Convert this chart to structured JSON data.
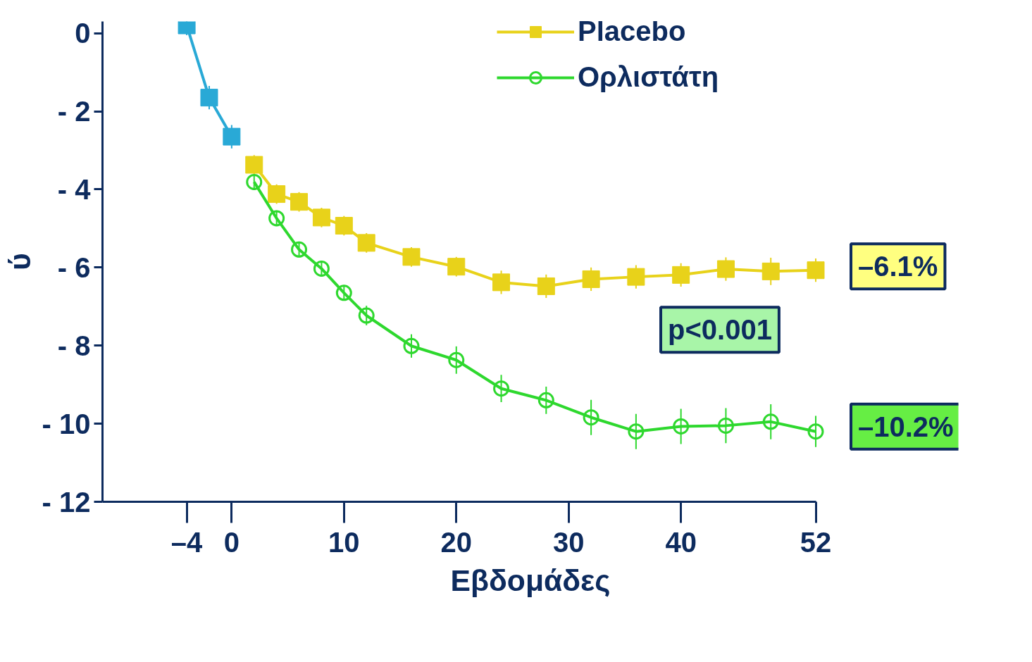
{
  "chart_data": {
    "type": "line",
    "xlabel": "Εβδομάδες",
    "ylabel": "ύ",
    "xlim": [
      -11.5,
      52
    ],
    "ylim": [
      -12,
      0.3
    ],
    "xticks": [
      {
        "value": -4,
        "label": "–4"
      },
      0,
      10,
      20,
      30,
      40,
      52
    ],
    "yticks": [
      0,
      {
        "value": -2,
        "label": "- 2"
      },
      {
        "value": -4,
        "label": "- 4"
      },
      {
        "value": -6,
        "label": "- 6"
      },
      {
        "value": -8,
        "label": "- 8"
      },
      {
        "value": -10,
        "label": "- 10"
      },
      {
        "value": -12,
        "label": "- 12"
      }
    ],
    "grid": false,
    "legend": "top right",
    "series": [
      {
        "color": "#29a9d6",
        "marker": "square",
        "x": [
          -4,
          -2,
          0
        ],
        "values": [
          0.2,
          -1.65,
          -2.65
        ],
        "errors": [
          0.25,
          0.3,
          0.3
        ]
      },
      {
        "name": "Placebo",
        "color": "#e8d21a",
        "marker": "square",
        "x": [
          2,
          4,
          6,
          8,
          10,
          12,
          16,
          20,
          24,
          28,
          32,
          36,
          40,
          44,
          48,
          52
        ],
        "values": [
          -3.37,
          -4.12,
          -4.32,
          -4.72,
          -4.93,
          -5.37,
          -5.73,
          -5.98,
          -6.38,
          -6.48,
          -6.3,
          -6.24,
          -6.19,
          -6.04,
          -6.1,
          -6.07
        ],
        "errors": [
          0.25,
          0.25,
          0.25,
          0.25,
          0.25,
          0.25,
          0.25,
          0.25,
          0.3,
          0.3,
          0.3,
          0.3,
          0.3,
          0.3,
          0.35,
          0.3
        ]
      },
      {
        "name": "Ορλιστάτη",
        "color": "#2ed82e",
        "marker": "circle",
        "x": [
          2,
          4,
          6,
          8,
          10,
          12,
          16,
          20,
          24,
          28,
          32,
          36,
          40,
          44,
          48,
          52
        ],
        "values": [
          -3.81,
          -4.74,
          -5.54,
          -6.03,
          -6.65,
          -7.23,
          -8.01,
          -8.37,
          -9.1,
          -9.4,
          -9.84,
          -10.2,
          -10.07,
          -10.05,
          -9.95,
          -10.2
        ],
        "errors": [
          0.2,
          0.2,
          0.2,
          0.2,
          0.2,
          0.25,
          0.3,
          0.35,
          0.35,
          0.35,
          0.45,
          0.45,
          0.45,
          0.45,
          0.45,
          0.4
        ]
      }
    ],
    "annotations": [
      {
        "text": "–6.1%",
        "x": 52,
        "y": -6.1
      },
      "p<0.001",
      {
        "text": "–10.2%",
        "x": 52,
        "y": -10.2
      }
    ]
  }
}
